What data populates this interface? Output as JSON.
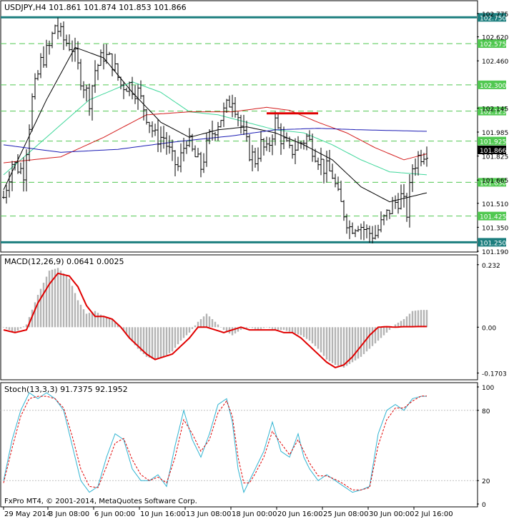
{
  "panels": {
    "price": {
      "header": "USDJPY,H4  101.861 101.874 101.853 101.866",
      "ylim": [
        101.19,
        102.78
      ],
      "ticks": [
        {
          "v": 102.775,
          "label": "102.775"
        },
        {
          "v": 102.62,
          "label": "102.620"
        },
        {
          "v": 102.46,
          "label": "102.460"
        },
        {
          "v": 102.145,
          "label": "102.145"
        },
        {
          "v": 101.985,
          "label": "101.985"
        },
        {
          "v": 101.825,
          "label": "101.825"
        },
        {
          "v": 101.665,
          "label": "101.665"
        },
        {
          "v": 101.51,
          "label": "101.510"
        },
        {
          "v": 101.35,
          "label": "101.350"
        },
        {
          "v": 101.19,
          "label": "101.190"
        }
      ],
      "levels": [
        {
          "v": 102.75,
          "label": "102.750",
          "style": "major"
        },
        {
          "v": 102.575,
          "label": "102.575",
          "style": "minor"
        },
        {
          "v": 102.3,
          "label": "102.300",
          "style": "minor"
        },
        {
          "v": 102.125,
          "label": "102.125",
          "style": "minor"
        },
        {
          "v": 101.925,
          "label": "101.925",
          "style": "minor"
        },
        {
          "v": 101.65,
          "label": "101.650",
          "style": "minor"
        },
        {
          "v": 101.425,
          "label": "101.425",
          "style": "minor"
        },
        {
          "v": 101.25,
          "label": "101.250",
          "style": "major"
        }
      ],
      "current": {
        "v": 101.866,
        "label": "101.866"
      }
    },
    "macd": {
      "header": "MACD(12,26,9) 0.0641 0.0025",
      "ylim": [
        -0.19,
        0.25
      ],
      "ticks": [
        {
          "v": 0.232,
          "label": "0.232"
        },
        {
          "v": 0.0,
          "label": "0.00"
        },
        {
          "v": -0.1703,
          "label": "-0.1703"
        }
      ]
    },
    "stoch": {
      "header": "Stoch(13,3,3) 91.7375 92.1952",
      "ylim": [
        0,
        100
      ],
      "ticks": [
        {
          "v": 100,
          "label": "100"
        },
        {
          "v": 80,
          "label": "80"
        },
        {
          "v": 20,
          "label": "20"
        },
        {
          "v": 0,
          "label": "0"
        }
      ],
      "levels": [
        80,
        20
      ]
    }
  },
  "copyright": "FxPro MT4, © 2001-2014, MetaQuotes Software Corp.",
  "x_axis": {
    "labels": [
      "29 May 2014",
      "3 Jun 08:00",
      "6 Jun 00:00",
      "10 Jun 16:00",
      "13 Jun 08:00",
      "18 Jun 00:00",
      "20 Jun 16:00",
      "25 Jun 08:00",
      "30 Jun 00:00",
      "2 Jul 16:00"
    ],
    "label_bar_index": [
      0,
      16,
      32,
      48,
      64,
      80,
      96,
      112,
      128,
      144
    ]
  },
  "colors": {
    "background": "#ffffff",
    "bars": "#000000",
    "level_major": "#1c7e7e",
    "level_minor": "#50c850",
    "ma_fast": "#000000",
    "ma_mid": "#3ed79a",
    "ma_slow": "#d41c1c",
    "ma_long": "#1a1ab4",
    "macd_hist": "#b4b4b4",
    "macd_signal": "#e00000",
    "stoch_main": "#30b4d2",
    "stoch_signal": "#e00000",
    "trend_segment": "#e00000"
  },
  "chart_data": {
    "type": "candlestick",
    "symbol": "USDJPY",
    "timeframe": "H4",
    "close_anchors": [
      [
        0,
        101.55
      ],
      [
        3,
        101.78
      ],
      [
        7,
        101.72
      ],
      [
        10,
        102.2
      ],
      [
        13,
        102.45
      ],
      [
        16,
        102.55
      ],
      [
        18,
        102.7
      ],
      [
        21,
        102.6
      ],
      [
        24,
        102.55
      ],
      [
        27,
        102.35
      ],
      [
        30,
        102.2
      ],
      [
        32,
        102.4
      ],
      [
        35,
        102.5
      ],
      [
        38,
        102.45
      ],
      [
        41,
        102.3
      ],
      [
        44,
        102.3
      ],
      [
        47,
        102.25
      ],
      [
        50,
        102.1
      ],
      [
        53,
        101.95
      ],
      [
        56,
        101.95
      ],
      [
        59,
        101.8
      ],
      [
        61,
        101.75
      ],
      [
        64,
        101.95
      ],
      [
        66,
        101.85
      ],
      [
        69,
        101.75
      ],
      [
        72,
        101.95
      ],
      [
        75,
        102.05
      ],
      [
        78,
        102.15
      ],
      [
        80,
        102.22
      ],
      [
        82,
        102.1
      ],
      [
        84,
        101.95
      ],
      [
        86,
        101.85
      ],
      [
        88,
        101.8
      ],
      [
        90,
        101.9
      ],
      [
        92,
        101.85
      ],
      [
        95,
        102.05
      ],
      [
        97,
        101.95
      ],
      [
        100,
        101.85
      ],
      [
        103,
        101.9
      ],
      [
        106,
        101.95
      ],
      [
        109,
        101.85
      ],
      [
        112,
        101.75
      ],
      [
        115,
        101.7
      ],
      [
        117,
        101.55
      ],
      [
        119,
        101.45
      ],
      [
        121,
        101.35
      ],
      [
        124,
        101.38
      ],
      [
        127,
        101.32
      ],
      [
        130,
        101.3
      ],
      [
        133,
        101.4
      ],
      [
        136,
        101.5
      ],
      [
        139,
        101.55
      ],
      [
        141,
        101.45
      ],
      [
        143,
        101.75
      ],
      [
        145,
        101.82
      ],
      [
        148,
        101.87
      ]
    ],
    "macd_anchors": [
      [
        0,
        0.0
      ],
      [
        4,
        -0.02
      ],
      [
        8,
        0.01
      ],
      [
        12,
        0.12
      ],
      [
        16,
        0.21
      ],
      [
        19,
        0.22
      ],
      [
        23,
        0.18
      ],
      [
        26,
        0.1
      ],
      [
        29,
        0.05
      ],
      [
        32,
        0.06
      ],
      [
        35,
        0.04
      ],
      [
        38,
        0.03
      ],
      [
        41,
        0.0
      ],
      [
        44,
        -0.04
      ],
      [
        47,
        -0.08
      ],
      [
        50,
        -0.11
      ],
      [
        53,
        -0.12
      ],
      [
        56,
        -0.11
      ],
      [
        59,
        -0.09
      ],
      [
        62,
        -0.05
      ],
      [
        65,
        -0.02
      ],
      [
        68,
        0.02
      ],
      [
        71,
        0.05
      ],
      [
        74,
        0.02
      ],
      [
        77,
        -0.01
      ],
      [
        80,
        -0.03
      ],
      [
        83,
        -0.01
      ],
      [
        86,
        0.0
      ],
      [
        89,
        -0.01
      ],
      [
        92,
        0.0
      ],
      [
        95,
        -0.01
      ],
      [
        98,
        -0.01
      ],
      [
        101,
        -0.02
      ],
      [
        104,
        -0.03
      ],
      [
        107,
        -0.05
      ],
      [
        110,
        -0.08
      ],
      [
        113,
        -0.12
      ],
      [
        116,
        -0.14
      ],
      [
        119,
        -0.15
      ],
      [
        122,
        -0.13
      ],
      [
        125,
        -0.11
      ],
      [
        128,
        -0.08
      ],
      [
        131,
        -0.05
      ],
      [
        134,
        -0.02
      ],
      [
        137,
        0.01
      ],
      [
        140,
        0.03
      ],
      [
        143,
        0.06
      ],
      [
        146,
        0.064
      ]
    ],
    "signal_anchors": [
      [
        0,
        -0.01
      ],
      [
        4,
        -0.02
      ],
      [
        8,
        -0.01
      ],
      [
        12,
        0.09
      ],
      [
        16,
        0.16
      ],
      [
        19,
        0.2
      ],
      [
        23,
        0.19
      ],
      [
        26,
        0.15
      ],
      [
        29,
        0.08
      ],
      [
        32,
        0.04
      ],
      [
        35,
        0.04
      ],
      [
        38,
        0.03
      ],
      [
        41,
        0.0
      ],
      [
        44,
        -0.04
      ],
      [
        47,
        -0.07
      ],
      [
        50,
        -0.1
      ],
      [
        53,
        -0.12
      ],
      [
        56,
        -0.11
      ],
      [
        59,
        -0.1
      ],
      [
        62,
        -0.07
      ],
      [
        65,
        -0.04
      ],
      [
        68,
        0.0
      ],
      [
        71,
        0.0
      ],
      [
        74,
        -0.01
      ],
      [
        77,
        -0.02
      ],
      [
        80,
        -0.01
      ],
      [
        83,
        0.0
      ],
      [
        86,
        -0.01
      ],
      [
        89,
        -0.01
      ],
      [
        92,
        -0.01
      ],
      [
        95,
        -0.01
      ],
      [
        98,
        -0.02
      ],
      [
        101,
        -0.02
      ],
      [
        104,
        -0.04
      ],
      [
        107,
        -0.07
      ],
      [
        110,
        -0.1
      ],
      [
        113,
        -0.13
      ],
      [
        116,
        -0.15
      ],
      [
        119,
        -0.14
      ],
      [
        122,
        -0.11
      ],
      [
        125,
        -0.07
      ],
      [
        128,
        -0.03
      ],
      [
        131,
        -0.0
      ],
      [
        134,
        0.002
      ],
      [
        137,
        0.0
      ],
      [
        140,
        0.002
      ],
      [
        143,
        0.002
      ],
      [
        146,
        0.0025
      ]
    ],
    "stoch_main_anchors": [
      [
        0,
        20
      ],
      [
        3,
        55
      ],
      [
        6,
        80
      ],
      [
        9,
        95
      ],
      [
        12,
        90
      ],
      [
        15,
        95
      ],
      [
        18,
        90
      ],
      [
        21,
        80
      ],
      [
        24,
        50
      ],
      [
        27,
        20
      ],
      [
        30,
        10
      ],
      [
        33,
        15
      ],
      [
        36,
        40
      ],
      [
        39,
        60
      ],
      [
        42,
        55
      ],
      [
        45,
        30
      ],
      [
        48,
        20
      ],
      [
        51,
        20
      ],
      [
        54,
        25
      ],
      [
        57,
        15
      ],
      [
        60,
        50
      ],
      [
        63,
        80
      ],
      [
        66,
        55
      ],
      [
        69,
        40
      ],
      [
        72,
        60
      ],
      [
        75,
        85
      ],
      [
        78,
        90
      ],
      [
        80,
        70
      ],
      [
        82,
        30
      ],
      [
        84,
        10
      ],
      [
        86,
        20
      ],
      [
        88,
        30
      ],
      [
        91,
        45
      ],
      [
        94,
        70
      ],
      [
        97,
        45
      ],
      [
        100,
        40
      ],
      [
        103,
        60
      ],
      [
        105,
        40
      ],
      [
        107,
        30
      ],
      [
        110,
        20
      ],
      [
        113,
        25
      ],
      [
        116,
        20
      ],
      [
        119,
        15
      ],
      [
        122,
        10
      ],
      [
        125,
        12
      ],
      [
        128,
        15
      ],
      [
        131,
        60
      ],
      [
        134,
        80
      ],
      [
        137,
        85
      ],
      [
        140,
        80
      ],
      [
        143,
        90
      ],
      [
        146,
        92
      ]
    ],
    "stoch_signal_anchors": [
      [
        0,
        18
      ],
      [
        3,
        48
      ],
      [
        6,
        75
      ],
      [
        9,
        90
      ],
      [
        12,
        92
      ],
      [
        15,
        92
      ],
      [
        18,
        90
      ],
      [
        21,
        82
      ],
      [
        24,
        58
      ],
      [
        27,
        30
      ],
      [
        30,
        15
      ],
      [
        33,
        14
      ],
      [
        36,
        32
      ],
      [
        39,
        52
      ],
      [
        42,
        56
      ],
      [
        45,
        38
      ],
      [
        48,
        25
      ],
      [
        51,
        20
      ],
      [
        54,
        23
      ],
      [
        57,
        18
      ],
      [
        60,
        40
      ],
      [
        63,
        72
      ],
      [
        66,
        60
      ],
      [
        69,
        45
      ],
      [
        72,
        55
      ],
      [
        75,
        78
      ],
      [
        78,
        88
      ],
      [
        80,
        75
      ],
      [
        82,
        40
      ],
      [
        84,
        18
      ],
      [
        86,
        18
      ],
      [
        88,
        26
      ],
      [
        91,
        40
      ],
      [
        94,
        62
      ],
      [
        97,
        52
      ],
      [
        100,
        42
      ],
      [
        103,
        55
      ],
      [
        105,
        45
      ],
      [
        107,
        35
      ],
      [
        110,
        24
      ],
      [
        113,
        24
      ],
      [
        116,
        21
      ],
      [
        119,
        17
      ],
      [
        122,
        12
      ],
      [
        125,
        12
      ],
      [
        128,
        14
      ],
      [
        131,
        50
      ],
      [
        134,
        72
      ],
      [
        137,
        82
      ],
      [
        140,
        82
      ],
      [
        143,
        88
      ],
      [
        146,
        92.2
      ]
    ],
    "ma_anchors": {
      "fast": [
        [
          0,
          101.6
        ],
        [
          15,
          102.2
        ],
        [
          25,
          102.55
        ],
        [
          35,
          102.48
        ],
        [
          45,
          102.25
        ],
        [
          55,
          102.05
        ],
        [
          65,
          101.95
        ],
        [
          75,
          102.0
        ],
        [
          85,
          102.02
        ],
        [
          95,
          101.98
        ],
        [
          105,
          101.9
        ],
        [
          115,
          101.8
        ],
        [
          125,
          101.62
        ],
        [
          135,
          101.52
        ],
        [
          148,
          101.58
        ]
      ],
      "mid": [
        [
          0,
          101.7
        ],
        [
          15,
          101.95
        ],
        [
          30,
          102.2
        ],
        [
          45,
          102.32
        ],
        [
          55,
          102.25
        ],
        [
          65,
          102.12
        ],
        [
          75,
          102.1
        ],
        [
          85,
          102.05
        ],
        [
          95,
          102.0
        ],
        [
          105,
          101.98
        ],
        [
          115,
          101.9
        ],
        [
          125,
          101.8
        ],
        [
          135,
          101.72
        ],
        [
          148,
          101.7
        ]
      ],
      "slow": [
        [
          0,
          101.78
        ],
        [
          20,
          101.82
        ],
        [
          35,
          101.95
        ],
        [
          50,
          102.1
        ],
        [
          65,
          102.12
        ],
        [
          80,
          102.12
        ],
        [
          92,
          102.15
        ],
        [
          100,
          102.13
        ],
        [
          110,
          102.05
        ],
        [
          120,
          101.98
        ],
        [
          130,
          101.88
        ],
        [
          140,
          101.8
        ],
        [
          148,
          101.84
        ]
      ],
      "long": [
        [
          0,
          101.9
        ],
        [
          20,
          101.85
        ],
        [
          40,
          101.87
        ],
        [
          60,
          101.92
        ],
        [
          80,
          101.96
        ],
        [
          95,
          102.0
        ],
        [
          110,
          102.01
        ],
        [
          125,
          102.0
        ],
        [
          148,
          101.99
        ]
      ]
    },
    "trend_segment": [
      [
        92,
        102.11
      ],
      [
        110,
        102.11
      ]
    ]
  }
}
